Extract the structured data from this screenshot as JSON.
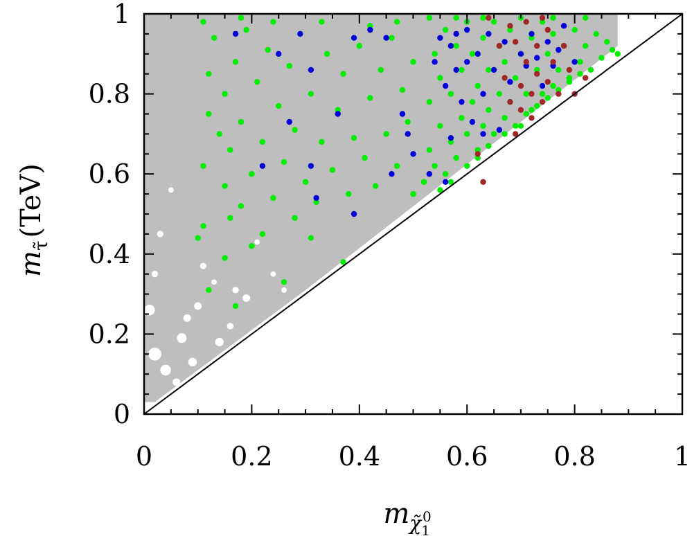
{
  "chart_data": {
    "type": "scatter",
    "title": "",
    "xlabel": {
      "symbol": "m",
      "subscript": "χ̃",
      "sub_sub": "1",
      "sub_sup": "0"
    },
    "ylabel": {
      "symbol": "m",
      "subscript": "τ̃",
      "unit": "(TeV)"
    },
    "xlim": [
      0,
      1
    ],
    "ylim": [
      0,
      1
    ],
    "x_ticks": [
      "0",
      "0.2",
      "0.4",
      "0.6",
      "0.8",
      "1"
    ],
    "y_ticks": [
      "0",
      "0.2",
      "0.4",
      "0.6",
      "0.8",
      "1"
    ],
    "grid": false,
    "legend": "none",
    "reference_line": {
      "label": "",
      "x": [
        0,
        1
      ],
      "y": [
        0,
        1
      ]
    },
    "background_region": {
      "color": "#bebebe",
      "note": "dense gray scan region above diagonal"
    },
    "series": [
      {
        "color": "#00ee00",
        "points": [
          [
            0.1,
            0.44
          ],
          [
            0.11,
            0.47
          ],
          [
            0.11,
            0.62
          ],
          [
            0.12,
            0.75
          ],
          [
            0.12,
            0.85
          ],
          [
            0.13,
            0.94
          ],
          [
            0.14,
            0.7
          ],
          [
            0.15,
            0.57
          ],
          [
            0.15,
            0.8
          ],
          [
            0.16,
            0.49
          ],
          [
            0.16,
            0.66
          ],
          [
            0.17,
            0.88
          ],
          [
            0.18,
            0.52
          ],
          [
            0.18,
            0.73
          ],
          [
            0.19,
            0.96
          ],
          [
            0.2,
            0.6
          ],
          [
            0.21,
            0.83
          ],
          [
            0.22,
            0.45
          ],
          [
            0.22,
            0.68
          ],
          [
            0.23,
            0.91
          ],
          [
            0.24,
            0.54
          ],
          [
            0.25,
            0.77
          ],
          [
            0.26,
            0.63
          ],
          [
            0.27,
            0.87
          ],
          [
            0.28,
            0.49
          ],
          [
            0.28,
            0.71
          ],
          [
            0.29,
            0.95
          ],
          [
            0.3,
            0.58
          ],
          [
            0.31,
            0.8
          ],
          [
            0.32,
            0.53
          ],
          [
            0.33,
            0.68
          ],
          [
            0.34,
            0.9
          ],
          [
            0.35,
            0.61
          ],
          [
            0.36,
            0.76
          ],
          [
            0.37,
            0.85
          ],
          [
            0.38,
            0.55
          ],
          [
            0.39,
            0.69
          ],
          [
            0.4,
            0.92
          ],
          [
            0.41,
            0.64
          ],
          [
            0.42,
            0.79
          ],
          [
            0.43,
            0.57
          ],
          [
            0.44,
            0.86
          ],
          [
            0.45,
            0.7
          ],
          [
            0.46,
            0.94
          ],
          [
            0.47,
            0.62
          ],
          [
            0.48,
            0.81
          ],
          [
            0.49,
            0.73
          ],
          [
            0.5,
            0.88
          ],
          [
            0.5,
            0.55
          ],
          [
            0.12,
            0.31
          ],
          [
            0.15,
            0.39
          ],
          [
            0.17,
            0.27
          ],
          [
            0.2,
            0.42
          ],
          [
            0.26,
            0.33
          ],
          [
            0.31,
            0.44
          ],
          [
            0.37,
            0.38
          ],
          [
            0.33,
            0.98
          ],
          [
            0.24,
            0.98
          ],
          [
            0.42,
            0.97
          ],
          [
            0.18,
            0.99
          ],
          [
            0.47,
            0.98
          ],
          [
            0.11,
            0.98
          ],
          [
            0.52,
            0.58
          ],
          [
            0.53,
            0.66
          ],
          [
            0.53,
            0.78
          ],
          [
            0.54,
            0.9
          ],
          [
            0.54,
            0.62
          ],
          [
            0.55,
            0.72
          ],
          [
            0.55,
            0.84
          ],
          [
            0.56,
            0.96
          ],
          [
            0.56,
            0.6
          ],
          [
            0.57,
            0.68
          ],
          [
            0.57,
            0.8
          ],
          [
            0.58,
            0.92
          ],
          [
            0.58,
            0.64
          ],
          [
            0.59,
            0.74
          ],
          [
            0.59,
            0.86
          ],
          [
            0.6,
            0.98
          ],
          [
            0.6,
            0.7
          ],
          [
            0.61,
            0.78
          ],
          [
            0.61,
            0.9
          ],
          [
            0.62,
            0.66
          ],
          [
            0.62,
            0.82
          ],
          [
            0.63,
            0.94
          ],
          [
            0.63,
            0.72
          ],
          [
            0.64,
            0.86
          ],
          [
            0.64,
            0.76
          ],
          [
            0.65,
            0.98
          ],
          [
            0.65,
            0.7
          ],
          [
            0.66,
            0.8
          ],
          [
            0.66,
            0.92
          ],
          [
            0.67,
            0.74
          ],
          [
            0.67,
            0.88
          ],
          [
            0.68,
            0.78
          ],
          [
            0.68,
            0.96
          ],
          [
            0.69,
            0.84
          ],
          [
            0.7,
            0.72
          ],
          [
            0.7,
            0.9
          ],
          [
            0.71,
            0.8
          ],
          [
            0.72,
            0.94
          ],
          [
            0.72,
            0.76
          ],
          [
            0.73,
            0.86
          ],
          [
            0.74,
            0.98
          ],
          [
            0.74,
            0.8
          ],
          [
            0.75,
            0.9
          ],
          [
            0.76,
            0.82
          ],
          [
            0.76,
            0.95
          ],
          [
            0.77,
            0.86
          ],
          [
            0.78,
            0.92
          ],
          [
            0.79,
            0.84
          ],
          [
            0.8,
            0.96
          ],
          [
            0.81,
            0.88
          ],
          [
            0.82,
            0.92
          ],
          [
            0.83,
            0.86
          ],
          [
            0.84,
            0.95
          ],
          [
            0.85,
            0.89
          ],
          [
            0.86,
            0.93
          ],
          [
            0.87,
            0.91
          ],
          [
            0.88,
            0.9
          ],
          [
            0.55,
            0.56
          ],
          [
            0.57,
            0.58
          ],
          [
            0.6,
            0.62
          ],
          [
            0.62,
            0.64
          ],
          [
            0.64,
            0.67
          ],
          [
            0.67,
            0.7
          ],
          [
            0.69,
            0.72
          ],
          [
            0.71,
            0.75
          ],
          [
            0.73,
            0.77
          ],
          [
            0.75,
            0.79
          ],
          [
            0.77,
            0.81
          ],
          [
            0.79,
            0.83
          ],
          [
            0.81,
            0.85
          ],
          [
            0.53,
            0.99
          ],
          [
            0.58,
            0.99
          ],
          [
            0.63,
            0.99
          ],
          [
            0.7,
            0.99
          ],
          [
            0.76,
            0.99
          ],
          [
            0.82,
            0.99
          ]
        ]
      },
      {
        "color": "#0000d8",
        "points": [
          [
            0.17,
            0.95
          ],
          [
            0.22,
            0.62
          ],
          [
            0.25,
            0.9
          ],
          [
            0.27,
            0.73
          ],
          [
            0.29,
            0.95
          ],
          [
            0.31,
            0.86
          ],
          [
            0.31,
            0.62
          ],
          [
            0.32,
            0.54
          ],
          [
            0.36,
            0.75
          ],
          [
            0.39,
            0.5
          ],
          [
            0.39,
            0.94
          ],
          [
            0.42,
            0.96
          ],
          [
            0.45,
            0.94
          ],
          [
            0.46,
            0.6
          ],
          [
            0.48,
            0.75
          ],
          [
            0.49,
            0.7
          ],
          [
            0.5,
            0.65
          ],
          [
            0.53,
            0.6
          ],
          [
            0.54,
            0.88
          ],
          [
            0.55,
            0.94
          ],
          [
            0.56,
            0.82
          ],
          [
            0.57,
            0.92
          ],
          [
            0.57,
            0.69
          ],
          [
            0.58,
            0.86
          ],
          [
            0.59,
            0.78
          ],
          [
            0.6,
            0.96
          ],
          [
            0.6,
            0.88
          ],
          [
            0.61,
            0.73
          ],
          [
            0.62,
            0.9
          ],
          [
            0.63,
            0.8
          ],
          [
            0.64,
            0.95
          ],
          [
            0.65,
            0.86
          ],
          [
            0.66,
            0.71
          ],
          [
            0.67,
            0.93
          ],
          [
            0.68,
            0.83
          ],
          [
            0.7,
            0.9
          ],
          [
            0.71,
            0.87
          ],
          [
            0.72,
            0.95
          ],
          [
            0.73,
            0.89
          ],
          [
            0.74,
            0.82
          ],
          [
            0.75,
            0.93
          ],
          [
            0.76,
            0.87
          ],
          [
            0.77,
            0.91
          ],
          [
            0.78,
            0.97
          ],
          [
            0.8,
            0.88
          ],
          [
            0.56,
            0.58
          ],
          [
            0.63,
            0.7
          ],
          [
            0.58,
            0.95
          ]
        ]
      },
      {
        "color": "#a02828",
        "points": [
          [
            0.62,
            0.65
          ],
          [
            0.64,
            0.99
          ],
          [
            0.66,
            0.92
          ],
          [
            0.67,
            0.84
          ],
          [
            0.68,
            0.78
          ],
          [
            0.69,
            0.93
          ],
          [
            0.69,
            0.7
          ],
          [
            0.7,
            0.82
          ],
          [
            0.7,
            0.76
          ],
          [
            0.71,
            0.88
          ],
          [
            0.72,
            0.8
          ],
          [
            0.72,
            0.74
          ],
          [
            0.73,
            0.92
          ],
          [
            0.73,
            0.85
          ],
          [
            0.74,
            0.78
          ],
          [
            0.75,
            0.96
          ],
          [
            0.75,
            0.83
          ],
          [
            0.76,
            0.88
          ],
          [
            0.77,
            0.8
          ],
          [
            0.78,
            0.92
          ],
          [
            0.79,
            0.86
          ],
          [
            0.8,
            0.8
          ],
          [
            0.82,
            0.84
          ],
          [
            0.68,
            0.97
          ],
          [
            0.71,
            0.98
          ],
          [
            0.74,
            0.99
          ],
          [
            0.63,
            0.58
          ]
        ]
      }
    ]
  }
}
